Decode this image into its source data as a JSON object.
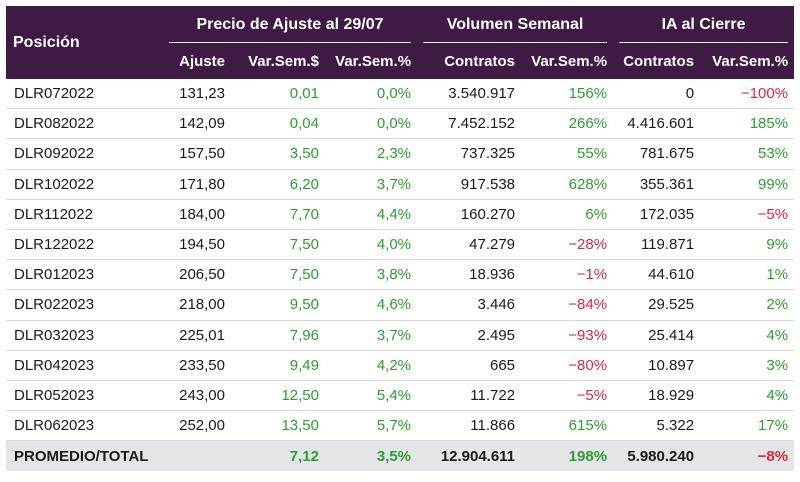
{
  "header": {
    "posicion": "Posición",
    "group_precio": "Precio de Ajuste al 29/07",
    "group_volumen": "Volumen Semanal",
    "group_ia": "IA al Cierre",
    "col_ajuste": "Ajuste",
    "col_var_sem_dollar": "Var.Sem.$",
    "col_var_sem_pct": "Var.Sem.%",
    "col_contratos": "Contratos",
    "col_vol_var_sem_pct": "Var.Sem.%",
    "col_ia_contratos": "Contratos",
    "col_ia_var_sem_pct": "Var.Sem.%"
  },
  "colors": {
    "header_bg": "#3e1a44",
    "positive": "#2e9e2e",
    "negative": "#d42a3c",
    "total_bg": "#e3e5e8"
  },
  "rows": [
    {
      "pos": "DLR072022",
      "ajuste": "131,23",
      "var_usd": "0,01",
      "var_pct": "0,0%",
      "contratos": "3.540.917",
      "vol_pct": "156%",
      "ia_contratos": "0",
      "ia_pct": "-100%"
    },
    {
      "pos": "DLR082022",
      "ajuste": "142,09",
      "var_usd": "0,04",
      "var_pct": "0,0%",
      "contratos": "7.452.152",
      "vol_pct": "266%",
      "ia_contratos": "4.416.601",
      "ia_pct": "185%"
    },
    {
      "pos": "DLR092022",
      "ajuste": "157,50",
      "var_usd": "3,50",
      "var_pct": "2,3%",
      "contratos": "737.325",
      "vol_pct": "55%",
      "ia_contratos": "781.675",
      "ia_pct": "53%"
    },
    {
      "pos": "DLR102022",
      "ajuste": "171,80",
      "var_usd": "6,20",
      "var_pct": "3,7%",
      "contratos": "917.538",
      "vol_pct": "628%",
      "ia_contratos": "355.361",
      "ia_pct": "99%"
    },
    {
      "pos": "DLR112022",
      "ajuste": "184,00",
      "var_usd": "7,70",
      "var_pct": "4,4%",
      "contratos": "160.270",
      "vol_pct": "6%",
      "ia_contratos": "172.035",
      "ia_pct": "-5%"
    },
    {
      "pos": "DLR122022",
      "ajuste": "194,50",
      "var_usd": "7,50",
      "var_pct": "4,0%",
      "contratos": "47.279",
      "vol_pct": "-28%",
      "ia_contratos": "119.871",
      "ia_pct": "9%"
    },
    {
      "pos": "DLR012023",
      "ajuste": "206,50",
      "var_usd": "7,50",
      "var_pct": "3,8%",
      "contratos": "18.936",
      "vol_pct": "-1%",
      "ia_contratos": "44.610",
      "ia_pct": "1%"
    },
    {
      "pos": "DLR022023",
      "ajuste": "218,00",
      "var_usd": "9,50",
      "var_pct": "4,6%",
      "contratos": "3.446",
      "vol_pct": "-84%",
      "ia_contratos": "29.525",
      "ia_pct": "2%"
    },
    {
      "pos": "DLR032023",
      "ajuste": "225,01",
      "var_usd": "7,96",
      "var_pct": "3,7%",
      "contratos": "2.495",
      "vol_pct": "-93%",
      "ia_contratos": "25.414",
      "ia_pct": "4%"
    },
    {
      "pos": "DLR042023",
      "ajuste": "233,50",
      "var_usd": "9,49",
      "var_pct": "4,2%",
      "contratos": "665",
      "vol_pct": "-80%",
      "ia_contratos": "10.897",
      "ia_pct": "3%"
    },
    {
      "pos": "DLR052023",
      "ajuste": "243,00",
      "var_usd": "12,50",
      "var_pct": "5,4%",
      "contratos": "11.722",
      "vol_pct": "-5%",
      "ia_contratos": "18.929",
      "ia_pct": "4%"
    },
    {
      "pos": "DLR062023",
      "ajuste": "252,00",
      "var_usd": "13,50",
      "var_pct": "5,7%",
      "contratos": "11.866",
      "vol_pct": "615%",
      "ia_contratos": "5.322",
      "ia_pct": "17%"
    }
  ],
  "total": {
    "label": "PROMEDIO/TOTAL",
    "ajuste": "",
    "var_usd": "7,12",
    "var_pct": "3,5%",
    "contratos": "12.904.611",
    "vol_pct": "198%",
    "ia_contratos": "5.980.240",
    "ia_pct": "-8%"
  }
}
